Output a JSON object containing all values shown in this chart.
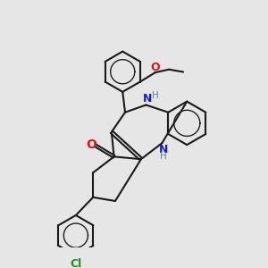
{
  "bg_color": "#e6e6e6",
  "bond_color": "#1a1a1a",
  "n_color": "#1a1acc",
  "o_color": "#cc1a1a",
  "cl_color": "#2a8a2a",
  "nh_color": "#5588aa",
  "line_width": 1.5,
  "dbo": 0.06,
  "xlim": [
    0,
    10
  ],
  "ylim": [
    0,
    10
  ]
}
